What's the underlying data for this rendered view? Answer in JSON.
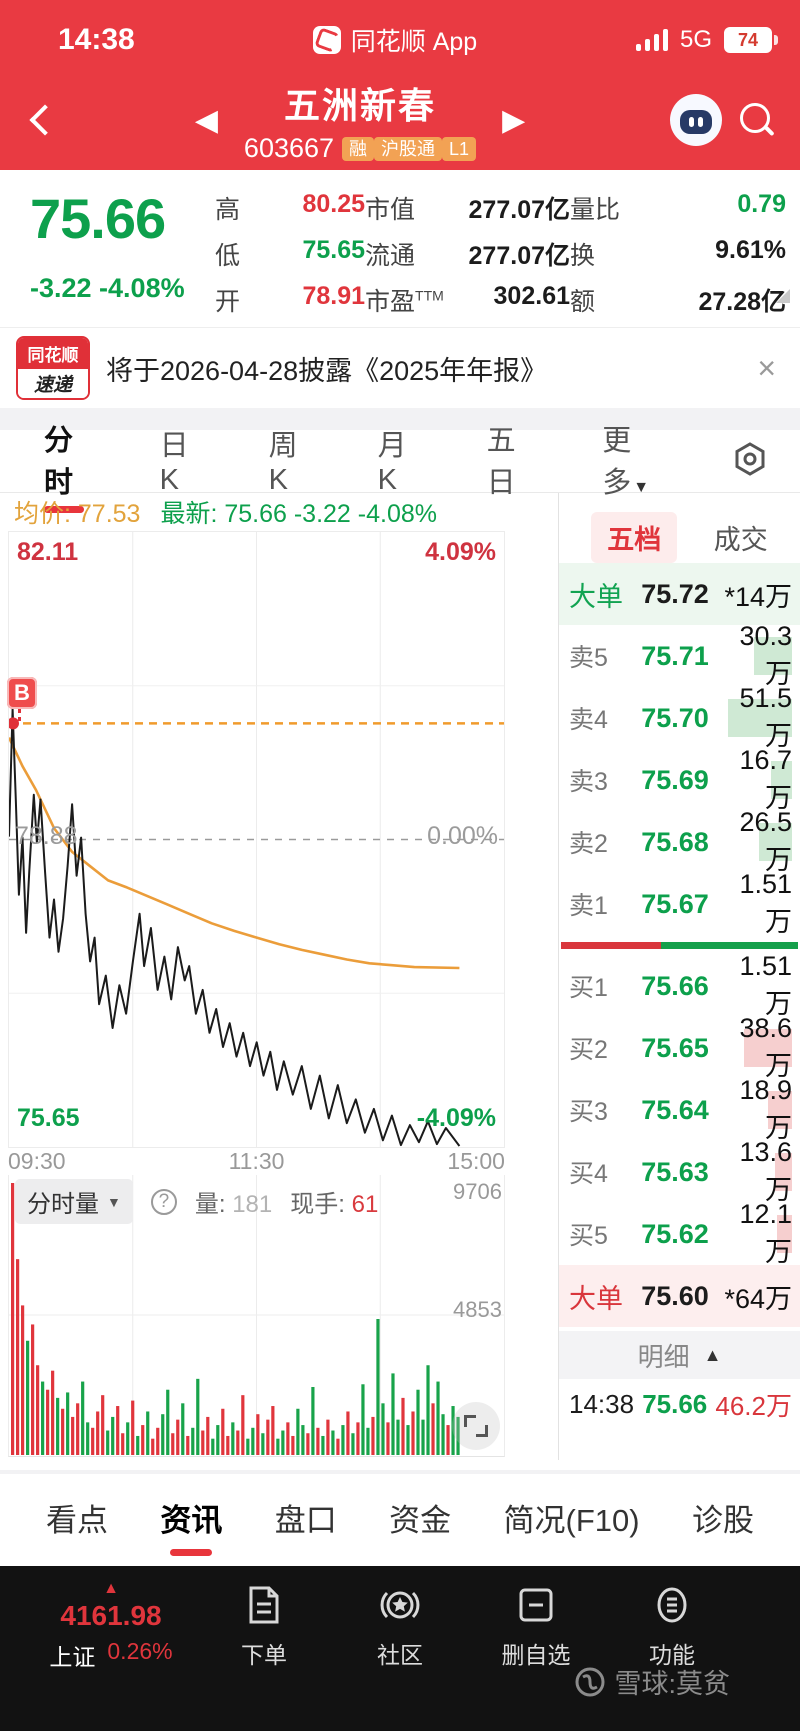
{
  "icons": {
    "caret_down": "▼",
    "caret_up": "▲",
    "tri_left": "◀",
    "tri_right": "▶",
    "close": "×",
    "help": "?",
    "up_arrow": "▲"
  },
  "status_bar": {
    "time": "14:38",
    "app_name": "同花顺 App",
    "network": "5G",
    "battery": "74"
  },
  "header": {
    "title": "五洲新春",
    "code": "603667",
    "badges": [
      "融",
      "沪股通",
      "L1"
    ]
  },
  "quote": {
    "price": "75.66",
    "change": "-3.22  -4.08%",
    "col1": [
      {
        "l": "高",
        "v": "80.25",
        "c": "c-red"
      },
      {
        "l": "低",
        "v": "75.65",
        "c": "c-green"
      },
      {
        "l": "开",
        "v": "78.91",
        "c": "c-red"
      }
    ],
    "col2": [
      {
        "l": "市值",
        "v": "277.07亿",
        "c": "c-dark"
      },
      {
        "l": "流通",
        "v": "277.07亿",
        "c": "c-dark"
      },
      {
        "l": "市盈",
        "sup": "TTM",
        "v": "302.61",
        "c": "c-dark"
      }
    ],
    "col3": [
      {
        "l": "量比",
        "v": "0.79",
        "c": "c-green"
      },
      {
        "l": "换",
        "v": "9.61%",
        "c": "c-dark"
      },
      {
        "l": "额",
        "v": "27.28亿",
        "c": "c-dark"
      }
    ]
  },
  "news": {
    "badge_top": "同花顺",
    "badge_bottom": "速递",
    "text": "将于2026-04-28披露《2025年年报》"
  },
  "period_tabs": {
    "items": [
      "分时",
      "日K",
      "周K",
      "月K",
      "五日",
      "更多"
    ],
    "active": 0,
    "more_index": 5
  },
  "chart_header": {
    "avg": "均价: 77.53",
    "last": "最新: 75.66  -3.22  -4.08%"
  },
  "chart_data": {
    "type": "line",
    "title": "分时走势",
    "ylim": [
      75.65,
      82.11
    ],
    "prev_close": 78.88,
    "labels": {
      "top_left": "82.11",
      "top_right": "4.09%",
      "mid_left": "78.88",
      "mid_right": "0.00%",
      "bot_left": "75.65",
      "bot_right": "-4.09%"
    },
    "x_ticks": [
      "09:30",
      "11:30",
      "15:00"
    ],
    "cost_line_price": 80.1,
    "buy_marker": "B",
    "price_series": [
      [
        0,
        78.91
      ],
      [
        0.008,
        80.25
      ],
      [
        0.015,
        79.3
      ],
      [
        0.022,
        78.3
      ],
      [
        0.03,
        78.9
      ],
      [
        0.038,
        77.9
      ],
      [
        0.045,
        78.55
      ],
      [
        0.055,
        79.35
      ],
      [
        0.062,
        78.85
      ],
      [
        0.07,
        79.3
      ],
      [
        0.08,
        78.55
      ],
      [
        0.09,
        77.85
      ],
      [
        0.1,
        78.25
      ],
      [
        0.11,
        77.7
      ],
      [
        0.12,
        78.05
      ],
      [
        0.13,
        78.6
      ],
      [
        0.14,
        79.25
      ],
      [
        0.15,
        78.5
      ],
      [
        0.16,
        78.9
      ],
      [
        0.17,
        78.1
      ],
      [
        0.18,
        77.6
      ],
      [
        0.19,
        77.85
      ],
      [
        0.2,
        77.15
      ],
      [
        0.215,
        77.45
      ],
      [
        0.23,
        76.9
      ],
      [
        0.245,
        77.35
      ],
      [
        0.26,
        77.05
      ],
      [
        0.275,
        77.6
      ],
      [
        0.29,
        78.1
      ],
      [
        0.3,
        77.55
      ],
      [
        0.315,
        77.95
      ],
      [
        0.33,
        77.3
      ],
      [
        0.345,
        77.65
      ],
      [
        0.36,
        77.2
      ],
      [
        0.375,
        77.75
      ],
      [
        0.39,
        77.4
      ],
      [
        0.4,
        77.55
      ],
      [
        0.415,
        77.05
      ],
      [
        0.43,
        77.3
      ],
      [
        0.445,
        76.85
      ],
      [
        0.46,
        77.1
      ],
      [
        0.475,
        76.7
      ],
      [
        0.49,
        76.95
      ],
      [
        0.505,
        76.6
      ],
      [
        0.52,
        76.85
      ],
      [
        0.535,
        76.5
      ],
      [
        0.55,
        76.75
      ],
      [
        0.565,
        76.4
      ],
      [
        0.58,
        76.65
      ],
      [
        0.595,
        76.25
      ],
      [
        0.61,
        76.55
      ],
      [
        0.63,
        76.2
      ],
      [
        0.65,
        76.5
      ],
      [
        0.67,
        76.05
      ],
      [
        0.69,
        76.4
      ],
      [
        0.71,
        75.95
      ],
      [
        0.73,
        76.3
      ],
      [
        0.75,
        75.9
      ],
      [
        0.77,
        76.15
      ],
      [
        0.79,
        75.8
      ],
      [
        0.81,
        76.05
      ],
      [
        0.83,
        75.72
      ],
      [
        0.85,
        75.98
      ],
      [
        0.87,
        75.67
      ],
      [
        0.89,
        75.88
      ],
      [
        0.91,
        75.7
      ],
      [
        0.93,
        75.92
      ],
      [
        0.95,
        75.68
      ],
      [
        0.97,
        75.85
      ],
      [
        1.0,
        75.66
      ]
    ],
    "avg_series": [
      [
        0,
        79.95
      ],
      [
        0.03,
        79.65
      ],
      [
        0.06,
        79.4
      ],
      [
        0.1,
        79.0
      ],
      [
        0.14,
        78.75
      ],
      [
        0.18,
        78.6
      ],
      [
        0.22,
        78.45
      ],
      [
        0.26,
        78.38
      ],
      [
        0.3,
        78.3
      ],
      [
        0.35,
        78.2
      ],
      [
        0.4,
        78.1
      ],
      [
        0.45,
        78.0
      ],
      [
        0.5,
        77.92
      ],
      [
        0.55,
        77.85
      ],
      [
        0.6,
        77.78
      ],
      [
        0.65,
        77.72
      ],
      [
        0.7,
        77.67
      ],
      [
        0.75,
        77.62
      ],
      [
        0.8,
        77.58
      ],
      [
        0.85,
        77.56
      ],
      [
        0.9,
        77.54
      ],
      [
        1.0,
        77.53
      ]
    ],
    "volume": {
      "max_label": "9706",
      "mid_label": "4853",
      "max": 9706,
      "bars": [
        [
          1.0,
          "r"
        ],
        [
          0.72,
          "r"
        ],
        [
          0.55,
          "r"
        ],
        [
          0.42,
          "g"
        ],
        [
          0.48,
          "r"
        ],
        [
          0.33,
          "r"
        ],
        [
          0.27,
          "g"
        ],
        [
          0.24,
          "r"
        ],
        [
          0.31,
          "r"
        ],
        [
          0.21,
          "g"
        ],
        [
          0.17,
          "r"
        ],
        [
          0.23,
          "g"
        ],
        [
          0.14,
          "r"
        ],
        [
          0.19,
          "r"
        ],
        [
          0.27,
          "g"
        ],
        [
          0.12,
          "g"
        ],
        [
          0.1,
          "r"
        ],
        [
          0.16,
          "r"
        ],
        [
          0.22,
          "r"
        ],
        [
          0.09,
          "g"
        ],
        [
          0.14,
          "g"
        ],
        [
          0.18,
          "r"
        ],
        [
          0.08,
          "r"
        ],
        [
          0.12,
          "g"
        ],
        [
          0.2,
          "r"
        ],
        [
          0.07,
          "g"
        ],
        [
          0.11,
          "r"
        ],
        [
          0.16,
          "g"
        ],
        [
          0.06,
          "r"
        ],
        [
          0.1,
          "r"
        ],
        [
          0.15,
          "g"
        ],
        [
          0.24,
          "g"
        ],
        [
          0.08,
          "r"
        ],
        [
          0.13,
          "r"
        ],
        [
          0.19,
          "g"
        ],
        [
          0.07,
          "r"
        ],
        [
          0.1,
          "g"
        ],
        [
          0.28,
          "g"
        ],
        [
          0.09,
          "r"
        ],
        [
          0.14,
          "r"
        ],
        [
          0.06,
          "g"
        ],
        [
          0.11,
          "g"
        ],
        [
          0.17,
          "r"
        ],
        [
          0.07,
          "r"
        ],
        [
          0.12,
          "g"
        ],
        [
          0.09,
          "r"
        ],
        [
          0.22,
          "r"
        ],
        [
          0.06,
          "g"
        ],
        [
          0.1,
          "g"
        ],
        [
          0.15,
          "r"
        ],
        [
          0.08,
          "g"
        ],
        [
          0.13,
          "r"
        ],
        [
          0.18,
          "r"
        ],
        [
          0.06,
          "g"
        ],
        [
          0.09,
          "g"
        ],
        [
          0.12,
          "r"
        ],
        [
          0.07,
          "r"
        ],
        [
          0.17,
          "g"
        ],
        [
          0.11,
          "g"
        ],
        [
          0.08,
          "r"
        ],
        [
          0.25,
          "g"
        ],
        [
          0.1,
          "r"
        ],
        [
          0.07,
          "g"
        ],
        [
          0.13,
          "r"
        ],
        [
          0.09,
          "g"
        ],
        [
          0.06,
          "r"
        ],
        [
          0.11,
          "g"
        ],
        [
          0.16,
          "r"
        ],
        [
          0.08,
          "g"
        ],
        [
          0.12,
          "r"
        ],
        [
          0.26,
          "g"
        ],
        [
          0.1,
          "g"
        ],
        [
          0.14,
          "r"
        ],
        [
          0.5,
          "g"
        ],
        [
          0.19,
          "g"
        ],
        [
          0.12,
          "r"
        ],
        [
          0.3,
          "g"
        ],
        [
          0.13,
          "g"
        ],
        [
          0.21,
          "r"
        ],
        [
          0.11,
          "g"
        ],
        [
          0.16,
          "r"
        ],
        [
          0.24,
          "g"
        ],
        [
          0.13,
          "g"
        ],
        [
          0.33,
          "g"
        ],
        [
          0.19,
          "r"
        ],
        [
          0.27,
          "g"
        ],
        [
          0.15,
          "g"
        ],
        [
          0.11,
          "r"
        ],
        [
          0.18,
          "g"
        ],
        [
          0.14,
          "g"
        ]
      ]
    }
  },
  "volume_header": {
    "selector": "分时量",
    "vol_label": "量:",
    "vol_value": "181",
    "cur_label": "现手:",
    "cur_value": "61"
  },
  "order_book": {
    "tab_five": "五档",
    "tab_deals": "成交",
    "sell_big": {
      "l": "大单",
      "p": "75.72",
      "v": "*14万"
    },
    "sells": [
      {
        "l": "卖5",
        "p": "75.71",
        "v": "30.3万",
        "f": 0.33
      },
      {
        "l": "卖4",
        "p": "75.70",
        "v": "51.5万",
        "f": 0.56
      },
      {
        "l": "卖3",
        "p": "75.69",
        "v": "16.7万",
        "f": 0.18
      },
      {
        "l": "卖2",
        "p": "75.68",
        "v": "26.5万",
        "f": 0.29
      },
      {
        "l": "卖1",
        "p": "75.67",
        "v": "1.51万",
        "f": 0.02
      }
    ],
    "ratio_red": 0.42,
    "buys": [
      {
        "l": "买1",
        "p": "75.66",
        "v": "1.51万",
        "f": 0.02
      },
      {
        "l": "买2",
        "p": "75.65",
        "v": "38.6万",
        "f": 0.42
      },
      {
        "l": "买3",
        "p": "75.64",
        "v": "18.9万",
        "f": 0.21
      },
      {
        "l": "买4",
        "p": "75.63",
        "v": "13.6万",
        "f": 0.15
      },
      {
        "l": "买5",
        "p": "75.62",
        "v": "12.1万",
        "f": 0.13
      }
    ],
    "buy_big": {
      "l": "大单",
      "p": "75.60",
      "v": "*64万"
    },
    "detail_label": "明细",
    "last_trade": {
      "time": "14:38",
      "price": "75.66",
      "vol": "46.2万"
    }
  },
  "bottom_tabs": {
    "items": [
      "看点",
      "资讯",
      "盘口",
      "资金",
      "简况(F10)",
      "诊股"
    ],
    "active": 1
  },
  "bottom_nav": {
    "index": {
      "value": "4161.98",
      "name": "上证",
      "pct": "0.26%"
    },
    "items": [
      {
        "icon": "order-doc-icon",
        "label": "下单"
      },
      {
        "icon": "community-star-icon",
        "label": "社区"
      },
      {
        "icon": "remove-watchlist-icon",
        "label": "删自选"
      },
      {
        "icon": "features-menu-icon",
        "label": "功能"
      }
    ]
  },
  "watermark": "雪球:莫贫",
  "colors": {
    "red": "#e0353c",
    "green": "#0da04c",
    "header_red": "#e93a42",
    "avg_orange": "#eb9d3a"
  }
}
